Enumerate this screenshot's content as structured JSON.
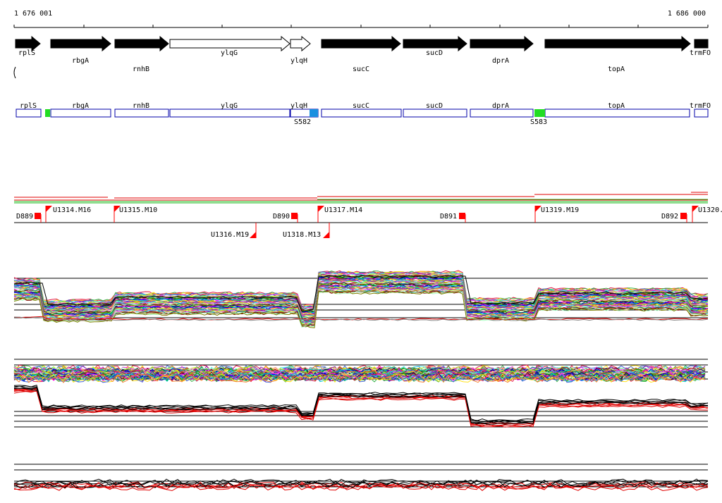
{
  "coords": {
    "start": "1 676 001",
    "end": "1 686 000"
  },
  "genes": [
    {
      "name": "rplS",
      "strand": "+",
      "filled": true
    },
    {
      "name": "rbgA",
      "strand": "+",
      "filled": true
    },
    {
      "name": "rnhB",
      "strand": "+",
      "filled": true
    },
    {
      "name": "ylqG",
      "strand": "+",
      "filled": false
    },
    {
      "name": "ylqH",
      "strand": "+",
      "filled": false
    },
    {
      "name": "sucC",
      "strand": "+",
      "filled": true
    },
    {
      "name": "sucD",
      "strand": "+",
      "filled": true
    },
    {
      "name": "dprA",
      "strand": "+",
      "filled": true
    },
    {
      "name": "topA",
      "strand": "+",
      "filled": true
    },
    {
      "name": "trmFO",
      "strand": "+",
      "filled": true
    }
  ],
  "gene_track_labels": [
    "rplS",
    "rbgA",
    "rnhB",
    "ylqG",
    "ylqH",
    "sucC",
    "sucD",
    "dprA",
    "topA",
    "trmFO"
  ],
  "segment_labels": [
    "rplS",
    "rbgA",
    "rnhB",
    "ylqG",
    "ylqH",
    "sucC",
    "sucD",
    "dprA",
    "topA",
    "trmFO"
  ],
  "site_markers": [
    {
      "name": "S582",
      "color": "#1a90e0"
    },
    {
      "name": "S583",
      "color": "#22dd22"
    }
  ],
  "site_extra": {
    "color": "#22dd22"
  },
  "upper_flags": [
    "D889",
    "U1314.M16",
    "U1315.M10",
    "D890",
    "U1317.M14",
    "D891",
    "U1319.M19",
    "D892",
    "U1320."
  ],
  "lower_flags": [
    "U1316.M19",
    "U1318.M13"
  ],
  "colors": {
    "flag": "#ff0000",
    "segment_border": "#0000aa",
    "trace_dark": "#000000",
    "trace_red": "#e00000"
  }
}
